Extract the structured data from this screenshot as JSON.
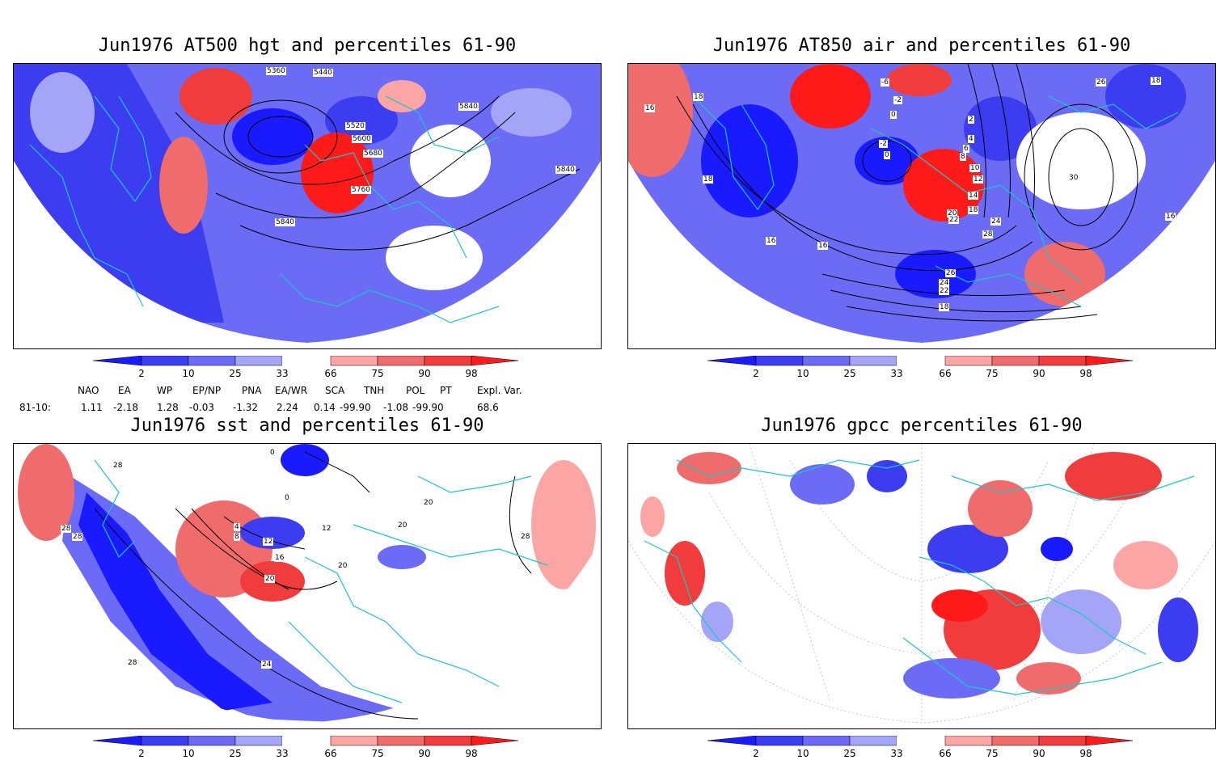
{
  "titles": {
    "p1": "Jun1976 AT500 hgt and percentiles 61-90",
    "p2": "Jun1976 AT850 air and percentiles 61-90",
    "p3": "Jun1976 sst and percentiles 61-90",
    "p4": "Jun1976 gpcc percentiles 61-90"
  },
  "colorbar": {
    "ticks": [
      "2",
      "10",
      "25",
      "33",
      "66",
      "75",
      "90",
      "98"
    ],
    "colors": [
      "#1a1aff",
      "#3c3cf0",
      "#6b6bf5",
      "#a5a5f7",
      "#ffffff",
      "#fba5a5",
      "#f06b6b",
      "#f03c3c",
      "#ff1a1a"
    ]
  },
  "indices": {
    "headers": [
      "NAO",
      "EA",
      "WP",
      "EP/NP",
      "PNA",
      "EA/WR",
      "SCA",
      "TNH",
      "POL",
      "PT",
      "Expl. Var."
    ],
    "row_label": "81-10:",
    "values": [
      "1.11",
      "-2.18",
      "1.28",
      "-0.03",
      "-1.32",
      "2.24",
      "0.14",
      "-99.90",
      "-1.08",
      "-99.90",
      "68.6"
    ]
  },
  "contour_labels": {
    "p1": [
      "5360",
      "5440",
      "5520",
      "5600",
      "5680",
      "5760",
      "5840",
      "5840",
      "5840"
    ],
    "p2": [
      "-6",
      "-2",
      "0",
      "2",
      "-2",
      "0",
      "4",
      "6",
      "8",
      "10",
      "12",
      "14",
      "16",
      "16",
      "16",
      "18",
      "18",
      "18",
      "20",
      "22",
      "24",
      "26",
      "28",
      "30",
      "16",
      "18",
      "22",
      "24",
      "26",
      "18"
    ],
    "p3": [
      "28",
      "28",
      "28",
      "0",
      "0",
      "4",
      "8",
      "12",
      "16",
      "20",
      "20",
      "24",
      "28",
      "20",
      "28",
      "12",
      "20"
    ]
  }
}
